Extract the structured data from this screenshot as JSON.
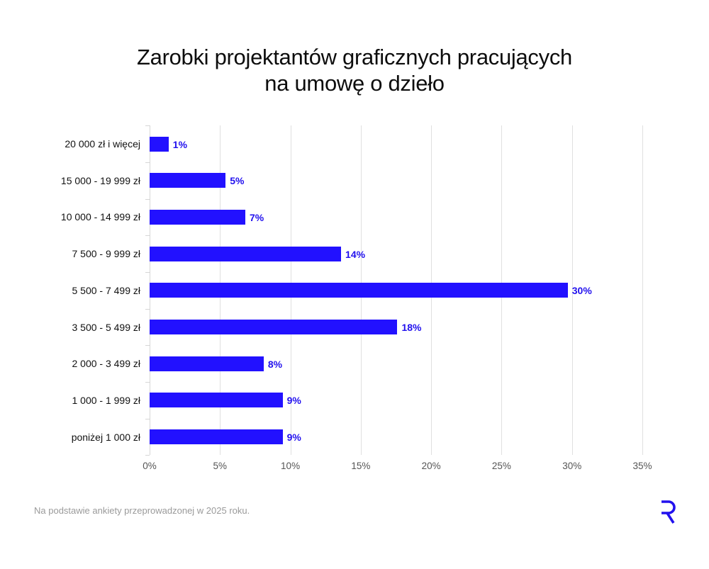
{
  "title": {
    "line1": "Zarobki projektantów graficznych pracujących",
    "line2": "na umowę o dzieło"
  },
  "footer": {
    "note": "Na podstawie ankiety przeprowadzonej w 2025 roku.",
    "logo_icon": "r-logo-icon"
  },
  "colors": {
    "bar": "#2211ff",
    "value_label": "#2211ee",
    "grid": "#e0e0e0"
  },
  "chart_data": {
    "type": "bar",
    "orientation": "horizontal",
    "title": "Zarobki projektantów graficznych pracujących na umowę o dzieło",
    "xlabel": "",
    "ylabel": "",
    "xlim": [
      0,
      35
    ],
    "x_ticks": [
      "0%",
      "5%",
      "10%",
      "15%",
      "20%",
      "25%",
      "30%",
      "35%"
    ],
    "grid": "vertical",
    "categories": [
      "20 000 zł i więcej",
      "15 000 - 19 999 zł",
      "10 000 - 14 999 zł",
      "7 500 - 9 999 zł",
      "5 500 - 7 499 zł",
      "3 500 - 5 499 zł",
      "2 000 - 3 499 zł",
      "1 000 - 1 999 zł",
      "poniżej 1 000 zł"
    ],
    "values": [
      1.35,
      5.4,
      6.8,
      13.6,
      29.7,
      17.6,
      8.1,
      9.45,
      9.45
    ],
    "labels": [
      "1%",
      "5%",
      "7%",
      "14%",
      "30%",
      "18%",
      "8%",
      "9%",
      "9%"
    ],
    "unit": "%",
    "source_note": "Na podstawie ankiety przeprowadzonej w 2025 roku."
  }
}
